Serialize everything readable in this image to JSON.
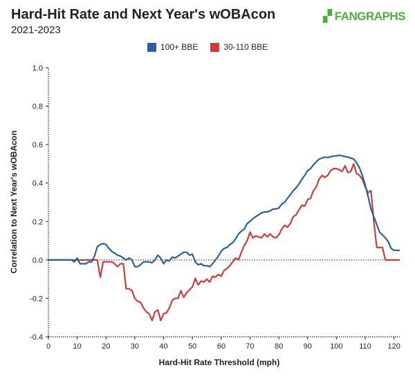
{
  "header": {
    "title": "Hard-Hit Rate and Next Year's wOBAcon",
    "subtitle": "2021-2023",
    "logo": "FANGRAPHS"
  },
  "chart_data": {
    "type": "line",
    "title": "Hard-Hit Rate and Next Year's wOBAcon",
    "subtitle": "2021-2023",
    "xlabel": "Hard-Hit Rate Threshold (mph)",
    "ylabel": "Correlation to Next Year's wOBAcon",
    "xlim": [
      0,
      122
    ],
    "ylim": [
      -0.4,
      1.0
    ],
    "xticks": [
      "0",
      "10",
      "20",
      "30",
      "40",
      "50",
      "60",
      "70",
      "80",
      "90",
      "100",
      "110",
      "120"
    ],
    "yticks": [
      "-0.4",
      "-0.2",
      "0.0",
      "0.2",
      "0.4",
      "0.6",
      "0.8",
      "1.0"
    ],
    "grid": false,
    "legend": "top",
    "reference_line": 0,
    "x_start": 0,
    "series": [
      {
        "name": "100+ BBE",
        "color": "#2a5f9e",
        "values": [
          0,
          0,
          0,
          0,
          0,
          0,
          0,
          0,
          0,
          -0.01,
          0.01,
          -0.02,
          -0.02,
          -0.02,
          -0.01,
          -0.01,
          0.02,
          0.07,
          0.08,
          0.085,
          0.08,
          0.06,
          0.045,
          0.035,
          0.025,
          0.02,
          0.01,
          0.0,
          0.01,
          0.0,
          -0.035,
          -0.035,
          -0.025,
          -0.01,
          -0.01,
          -0.01,
          -0.015,
          0.0,
          0.025,
          0.01,
          -0.02,
          0.0,
          -0.005,
          0.015,
          0.01,
          0.02,
          0.03,
          0.04,
          0.04,
          0.025,
          0.03,
          -0.01,
          -0.025,
          -0.02,
          -0.03,
          -0.03,
          -0.035,
          -0.02,
          0.0,
          0.02,
          0.045,
          0.06,
          0.065,
          0.08,
          0.09,
          0.11,
          0.135,
          0.15,
          0.16,
          0.19,
          0.2,
          0.215,
          0.225,
          0.235,
          0.245,
          0.25,
          0.25,
          0.255,
          0.265,
          0.265,
          0.27,
          0.29,
          0.3,
          0.32,
          0.34,
          0.36,
          0.375,
          0.395,
          0.42,
          0.44,
          0.465,
          0.475,
          0.495,
          0.51,
          0.525,
          0.53,
          0.535,
          0.533,
          0.537,
          0.54,
          0.542,
          0.545,
          0.542,
          0.538,
          0.535,
          0.53,
          0.525,
          0.505,
          0.48,
          0.44,
          0.39,
          0.33,
          0.265,
          0.225,
          0.185,
          0.145,
          0.13,
          0.115,
          0.095,
          0.06,
          0.05,
          0.05,
          0.05
        ]
      },
      {
        "name": "30-110 BBE",
        "color": "#d23a3a",
        "values": [
          0,
          0,
          0,
          0,
          0,
          0,
          0,
          0,
          0,
          0,
          0,
          0,
          0,
          0,
          0,
          0,
          0,
          0,
          -0.09,
          -0.01,
          -0.01,
          -0.01,
          -0.01,
          -0.02,
          -0.035,
          -0.02,
          -0.02,
          -0.15,
          -0.15,
          -0.16,
          -0.2,
          -0.215,
          -0.22,
          -0.25,
          -0.27,
          -0.28,
          -0.315,
          -0.27,
          -0.26,
          -0.315,
          -0.28,
          -0.275,
          -0.25,
          -0.21,
          -0.2,
          -0.2,
          -0.16,
          -0.195,
          -0.17,
          -0.155,
          -0.14,
          -0.095,
          -0.13,
          -0.11,
          -0.115,
          -0.1,
          -0.115,
          -0.085,
          -0.09,
          -0.075,
          -0.085,
          -0.055,
          -0.045,
          -0.03,
          -0.01,
          0.01,
          0.0,
          0.04,
          0.075,
          0.1,
          0.145,
          0.115,
          0.125,
          0.12,
          0.115,
          0.135,
          0.12,
          0.135,
          0.12,
          0.115,
          0.13,
          0.16,
          0.18,
          0.17,
          0.19,
          0.225,
          0.235,
          0.26,
          0.285,
          0.28,
          0.315,
          0.32,
          0.36,
          0.38,
          0.42,
          0.44,
          0.43,
          0.44,
          0.465,
          0.475,
          0.475,
          0.47,
          0.46,
          0.49,
          0.455,
          0.46,
          0.5,
          0.45,
          0.44,
          0.42,
          0.38,
          0.35,
          0.36,
          0.2,
          0.065,
          0.065,
          0.065,
          0.0,
          0,
          0,
          0,
          0,
          0
        ]
      }
    ]
  }
}
